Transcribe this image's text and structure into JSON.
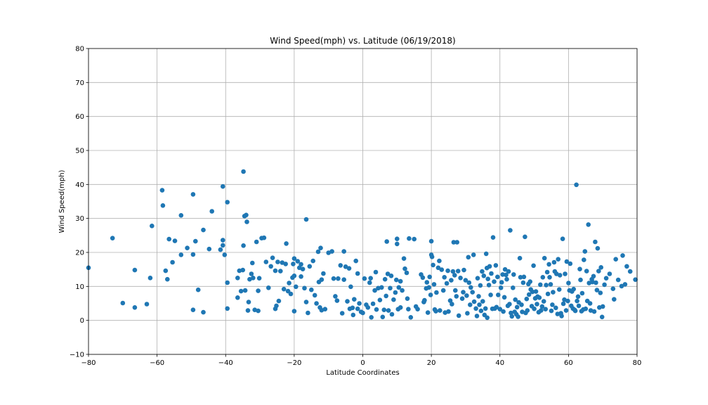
{
  "chart_data": {
    "type": "scatter",
    "title": "Wind Speed(mph) vs. Latitude (06/19/2018)",
    "xlabel": "Latitude Coordinates",
    "ylabel": "Wind Speed(mph)",
    "xlim": [
      -80,
      80
    ],
    "ylim": [
      -10,
      80
    ],
    "xticks": [
      -80,
      -60,
      -40,
      -20,
      0,
      20,
      40,
      60,
      80
    ],
    "yticks": [
      -10,
      0,
      10,
      20,
      30,
      40,
      50,
      60,
      70,
      80
    ],
    "xtick_labels": [
      "−80",
      "−60",
      "−40",
      "−20",
      "0",
      "20",
      "40",
      "60",
      "80"
    ],
    "ytick_labels": [
      "−10",
      "0",
      "10",
      "20",
      "30",
      "40",
      "50",
      "60",
      "70",
      "80"
    ],
    "grid": true,
    "marker_color": "#1f77b4",
    "points": [
      [
        -80,
        15.5
      ],
      [
        -73,
        24.2
      ],
      [
        -70,
        5.1
      ],
      [
        -66.5,
        14.8
      ],
      [
        -66.5,
        3.8
      ],
      [
        -63,
        4.8
      ],
      [
        -62,
        12.5
      ],
      [
        -61.5,
        27.8
      ],
      [
        -58.5,
        38.3
      ],
      [
        -58.3,
        33.8
      ],
      [
        -57.5,
        14.6
      ],
      [
        -57,
        12.1
      ],
      [
        -56.5,
        23.9
      ],
      [
        -55.5,
        17.1
      ],
      [
        -54.8,
        23.4
      ],
      [
        -53,
        19.3
      ],
      [
        -53,
        30.9
      ],
      [
        -51.2,
        21.3
      ],
      [
        -49.5,
        37.1
      ],
      [
        -49.5,
        19.4
      ],
      [
        -49.5,
        3.1
      ],
      [
        -48.8,
        23.3
      ],
      [
        -48,
        9
      ],
      [
        -46.5,
        26.6
      ],
      [
        -46.5,
        2.4
      ],
      [
        -44.8,
        21
      ],
      [
        -44,
        32.1
      ],
      [
        -41.5,
        20.8
      ],
      [
        -40.8,
        39.4
      ],
      [
        -40.8,
        23.6
      ],
      [
        -40.8,
        22.1
      ],
      [
        -40.3,
        19.3
      ],
      [
        -39.5,
        34.8
      ],
      [
        -39.5,
        11.1
      ],
      [
        -39.5,
        3.5
      ],
      [
        -36.5,
        12.5
      ],
      [
        -36.5,
        6.7
      ],
      [
        -36,
        14.6
      ],
      [
        -35.5,
        8.6
      ],
      [
        -35,
        14.8
      ],
      [
        -34.8,
        43.8
      ],
      [
        -34.8,
        22
      ],
      [
        -34.5,
        30.7
      ],
      [
        -34.3,
        8.8
      ],
      [
        -34,
        31
      ],
      [
        -33.8,
        29
      ],
      [
        -33.5,
        2.9
      ],
      [
        -33.3,
        5.4
      ],
      [
        -33,
        12.1
      ],
      [
        -32.5,
        13.7
      ],
      [
        -32.2,
        16.9
      ],
      [
        -32,
        12.5
      ],
      [
        -31.5,
        3.1
      ],
      [
        -31,
        23.1
      ],
      [
        -30.5,
        8.7
      ],
      [
        -30.2,
        12.4
      ],
      [
        -30.5,
        2.8
      ],
      [
        -29.5,
        24.2
      ],
      [
        -28.8,
        24.3
      ],
      [
        -28.2,
        17.2
      ],
      [
        -27.5,
        9.6
      ],
      [
        -26.8,
        15.9
      ],
      [
        -26.3,
        18.4
      ],
      [
        -25.5,
        14.6
      ],
      [
        -25.5,
        3.4
      ],
      [
        -25.2,
        4.3
      ],
      [
        -24.5,
        5.7
      ],
      [
        -24.8,
        17.2
      ],
      [
        -24,
        14.5
      ],
      [
        -23.5,
        17
      ],
      [
        -23,
        9.2
      ],
      [
        -22.5,
        16.6
      ],
      [
        -22.3,
        22.6
      ],
      [
        -21.8,
        8.6
      ],
      [
        -21.5,
        11
      ],
      [
        -21,
        7.8
      ],
      [
        -20.5,
        12.6
      ],
      [
        -20.3,
        16.6
      ],
      [
        -20,
        18.2
      ],
      [
        -20,
        13.1
      ],
      [
        -20,
        2.7
      ],
      [
        -19.5,
        9.9
      ],
      [
        -19,
        17.4
      ],
      [
        -18.5,
        15.5
      ],
      [
        -18,
        16.5
      ],
      [
        -18,
        12.9
      ],
      [
        -17.5,
        15.1
      ],
      [
        -17,
        9.5
      ],
      [
        -16.5,
        29.7
      ],
      [
        -16.5,
        5.4
      ],
      [
        -16,
        2.2
      ],
      [
        -15.5,
        15.9
      ],
      [
        -15,
        9
      ],
      [
        -14.5,
        17.5
      ],
      [
        -14,
        7.4
      ],
      [
        -13.5,
        5
      ],
      [
        -13,
        20.2
      ],
      [
        -12.8,
        11.3
      ],
      [
        -12.5,
        3.8
      ],
      [
        -12.3,
        21.3
      ],
      [
        -12,
        12
      ],
      [
        -12,
        3
      ],
      [
        -11.5,
        13.8
      ],
      [
        -11,
        3.3
      ],
      [
        -10,
        19.9
      ],
      [
        -9,
        20.3
      ],
      [
        -8.5,
        12.3
      ],
      [
        -8,
        7.1
      ],
      [
        -7.5,
        5.8
      ],
      [
        -7.2,
        12.3
      ],
      [
        -6.5,
        16.2
      ],
      [
        -6,
        2.1
      ],
      [
        -5.5,
        20.3
      ],
      [
        -5.5,
        12
      ],
      [
        -5,
        15.8
      ],
      [
        -4.5,
        5.6
      ],
      [
        -4,
        15.3
      ],
      [
        -3.8,
        3.4
      ],
      [
        -3.5,
        9.9
      ],
      [
        -3,
        3.7
      ],
      [
        -2.8,
        1.6
      ],
      [
        -2.5,
        6.2
      ],
      [
        -2,
        17.5
      ],
      [
        -1.5,
        13.8
      ],
      [
        -1.5,
        3.4
      ],
      [
        -1,
        5
      ],
      [
        -0.5,
        2.5
      ],
      [
        0,
        2.2
      ],
      [
        0.5,
        12.3
      ],
      [
        1,
        4.6
      ],
      [
        1.5,
        3.8
      ],
      [
        2,
        11.1
      ],
      [
        2.3,
        12.4
      ],
      [
        2.5,
        0.9
      ],
      [
        3,
        4.9
      ],
      [
        3.5,
        8.8
      ],
      [
        3.8,
        14.2
      ],
      [
        4,
        3.2
      ],
      [
        4.5,
        9.5
      ],
      [
        5,
        6
      ],
      [
        5.5,
        9.7
      ],
      [
        5.8,
        1
      ],
      [
        6.2,
        3.1
      ],
      [
        6.5,
        12.1
      ],
      [
        6.8,
        7.2
      ],
      [
        7,
        23.2
      ],
      [
        7.3,
        13.7
      ],
      [
        7.5,
        2.9
      ],
      [
        8,
        9.5
      ],
      [
        8.3,
        13.1
      ],
      [
        8.5,
        1.8
      ],
      [
        9,
        6.1
      ],
      [
        9.5,
        8.2
      ],
      [
        9.8,
        11.9
      ],
      [
        10,
        24
      ],
      [
        10,
        22.5
      ],
      [
        10.3,
        3.3
      ],
      [
        10.5,
        9.7
      ],
      [
        11,
        11.5
      ],
      [
        11,
        3.8
      ],
      [
        11.5,
        8.8
      ],
      [
        12,
        18.2
      ],
      [
        12.3,
        15.2
      ],
      [
        12.8,
        14
      ],
      [
        13,
        6.4
      ],
      [
        13.3,
        3.3
      ],
      [
        13.5,
        24.1
      ],
      [
        14,
        0.9
      ],
      [
        15,
        23.9
      ],
      [
        15.5,
        4.1
      ],
      [
        16,
        3.3
      ],
      [
        17,
        13.5
      ],
      [
        17.5,
        12.6
      ],
      [
        17.8,
        5.4
      ],
      [
        18,
        5.9
      ],
      [
        18.5,
        9.4
      ],
      [
        18.7,
        11.2
      ],
      [
        19,
        2.3
      ],
      [
        19.3,
        9.7
      ],
      [
        19.5,
        12.8
      ],
      [
        19.8,
        7.5
      ],
      [
        20,
        23.3
      ],
      [
        20,
        19.3
      ],
      [
        20.2,
        18.7
      ],
      [
        20.5,
        16.3
      ],
      [
        20.8,
        10.6
      ],
      [
        21,
        3.2
      ],
      [
        21.3,
        2.7
      ],
      [
        21.5,
        8.2
      ],
      [
        22,
        15.5
      ],
      [
        22.3,
        17.5
      ],
      [
        22.5,
        2.9
      ],
      [
        23,
        14.9
      ],
      [
        23.5,
        8.8
      ],
      [
        23.8,
        12.7
      ],
      [
        24,
        2.3
      ],
      [
        24.5,
        10.9
      ],
      [
        24.8,
        14.6
      ],
      [
        25,
        2.6
      ],
      [
        25.5,
        5.8
      ],
      [
        25.8,
        11.8
      ],
      [
        26,
        4.8
      ],
      [
        26.3,
        14.4
      ],
      [
        26.5,
        23
      ],
      [
        26.8,
        13.3
      ],
      [
        27,
        8.8
      ],
      [
        27.3,
        7.1
      ],
      [
        27.5,
        23
      ],
      [
        27.8,
        14.5
      ],
      [
        28,
        1.4
      ],
      [
        28.5,
        12.5
      ],
      [
        29,
        6.4
      ],
      [
        29.3,
        8.3
      ],
      [
        29.5,
        14.8
      ],
      [
        30,
        11.8
      ],
      [
        30.3,
        7.3
      ],
      [
        30.5,
        2.1
      ],
      [
        30.8,
        18.6
      ],
      [
        31,
        11.1
      ],
      [
        31.3,
        4.6
      ],
      [
        31.5,
        9.7
      ],
      [
        32,
        8.3
      ],
      [
        32.3,
        19.3
      ],
      [
        32.5,
        5.5
      ],
      [
        33,
        3.5
      ],
      [
        33.3,
        1.3
      ],
      [
        33.5,
        12.4
      ],
      [
        33.8,
        7.1
      ],
      [
        34,
        4.6
      ],
      [
        34.3,
        10.3
      ],
      [
        34.5,
        2.8
      ],
      [
        34.8,
        14.4
      ],
      [
        35,
        5.6
      ],
      [
        35.3,
        13.1
      ],
      [
        35.5,
        1.6
      ],
      [
        35.8,
        3.5
      ],
      [
        36,
        19.6
      ],
      [
        36.2,
        15.4
      ],
      [
        36.3,
        0.8
      ],
      [
        36.5,
        12.2
      ],
      [
        36.8,
        10.4
      ],
      [
        37,
        15.9
      ],
      [
        37.3,
        7.5
      ],
      [
        37.5,
        13.8
      ],
      [
        37.8,
        3.4
      ],
      [
        38,
        24.4
      ],
      [
        38.3,
        11.4
      ],
      [
        38.5,
        3.5
      ],
      [
        38.8,
        16.2
      ],
      [
        39,
        3.9
      ],
      [
        39.3,
        12.8
      ],
      [
        39.5,
        7.5
      ],
      [
        40,
        3.3
      ],
      [
        40.3,
        9.6
      ],
      [
        40.5,
        11.2
      ],
      [
        40.8,
        13.5
      ],
      [
        41,
        2.6
      ],
      [
        41.3,
        6.8
      ],
      [
        41.5,
        15
      ],
      [
        41.8,
        13.4
      ],
      [
        42,
        12.1
      ],
      [
        42.3,
        4.3
      ],
      [
        42.5,
        14.4
      ],
      [
        42.8,
        4.8
      ],
      [
        43,
        26.5
      ],
      [
        43.2,
        2.2
      ],
      [
        43.5,
        1.2
      ],
      [
        43.8,
        9.6
      ],
      [
        44,
        13.5
      ],
      [
        44.3,
        2.5
      ],
      [
        44.5,
        6.1
      ],
      [
        44.8,
        1.8
      ],
      [
        45,
        3.9
      ],
      [
        45.3,
        1.1
      ],
      [
        45.5,
        5.3
      ],
      [
        45.8,
        18.3
      ],
      [
        46,
        12.7
      ],
      [
        46.3,
        4.6
      ],
      [
        46.5,
        2.5
      ],
      [
        46.8,
        11.1
      ],
      [
        47,
        12.8
      ],
      [
        47.3,
        24.6
      ],
      [
        47.5,
        2.2
      ],
      [
        47.8,
        6.3
      ],
      [
        48,
        2.9
      ],
      [
        48.3,
        10.7
      ],
      [
        48.5,
        7.6
      ],
      [
        48.8,
        11.4
      ],
      [
        49,
        9.1
      ],
      [
        49.3,
        4.2
      ],
      [
        49.5,
        8.4
      ],
      [
        49.8,
        16.1
      ],
      [
        50,
        3.4
      ],
      [
        50.3,
        6.5
      ],
      [
        50.5,
        8.5
      ],
      [
        50.8,
        4.8
      ],
      [
        51,
        7
      ],
      [
        51.3,
        2.4
      ],
      [
        51.5,
        6.7
      ],
      [
        51.8,
        10.5
      ],
      [
        52,
        2.9
      ],
      [
        52.3,
        4.1
      ],
      [
        52.5,
        12.7
      ],
      [
        52.8,
        5.6
      ],
      [
        53,
        18.3
      ],
      [
        53.3,
        3.3
      ],
      [
        53.5,
        10.4
      ],
      [
        53.8,
        14.2
      ],
      [
        54,
        7.8
      ],
      [
        54.3,
        16.5
      ],
      [
        54.5,
        12.7
      ],
      [
        54.8,
        10.6
      ],
      [
        55,
        2.8
      ],
      [
        55.3,
        4.6
      ],
      [
        55.5,
        8.3
      ],
      [
        55.8,
        17.1
      ],
      [
        56,
        14.4
      ],
      [
        56.3,
        3.7
      ],
      [
        56.5,
        13.7
      ],
      [
        56.8,
        1.9
      ],
      [
        57,
        18
      ],
      [
        57.3,
        9.1
      ],
      [
        57.5,
        13.3
      ],
      [
        57.8,
        2.1
      ],
      [
        58,
        1.3
      ],
      [
        58.3,
        24
      ],
      [
        58.5,
        4.9
      ],
      [
        58.8,
        6.1
      ],
      [
        59,
        13.7
      ],
      [
        59.3,
        2.9
      ],
      [
        59.5,
        17.3
      ],
      [
        59.8,
        5.7
      ],
      [
        60,
        11
      ],
      [
        60.3,
        8.8
      ],
      [
        60.5,
        16.7
      ],
      [
        60.8,
        4.3
      ],
      [
        61,
        8.5
      ],
      [
        61.3,
        3.5
      ],
      [
        61.5,
        9.2
      ],
      [
        61.8,
        3.1
      ],
      [
        62,
        2.8
      ],
      [
        62.3,
        39.9
      ],
      [
        62.5,
        5.7
      ],
      [
        62.8,
        7
      ],
      [
        63,
        4.3
      ],
      [
        63.3,
        15.1
      ],
      [
        63.5,
        11.9
      ],
      [
        63.8,
        2.7
      ],
      [
        64,
        8
      ],
      [
        64.3,
        3.2
      ],
      [
        64.5,
        17.8
      ],
      [
        64.8,
        20.3
      ],
      [
        65,
        3.4
      ],
      [
        65.3,
        14.5
      ],
      [
        65.5,
        5.7
      ],
      [
        65.8,
        28.2
      ],
      [
        66,
        11
      ],
      [
        66.3,
        5
      ],
      [
        66.5,
        2.9
      ],
      [
        66.8,
        12.1
      ],
      [
        67,
        11.3
      ],
      [
        67.3,
        13
      ],
      [
        67.5,
        2.6
      ],
      [
        67.8,
        23.1
      ],
      [
        68,
        11.1
      ],
      [
        68.3,
        8.9
      ],
      [
        68.5,
        21.2
      ],
      [
        68.8,
        14.5
      ],
      [
        69,
        3.8
      ],
      [
        69.3,
        8.1
      ],
      [
        69.5,
        15.6
      ],
      [
        69.8,
        1
      ],
      [
        70,
        4.1
      ],
      [
        70.5,
        10.5
      ],
      [
        71,
        12.4
      ],
      [
        72,
        13.7
      ],
      [
        73,
        9.3
      ],
      [
        73.3,
        6.2
      ],
      [
        73.8,
        18
      ],
      [
        74.5,
        11.9
      ],
      [
        75.5,
        10.1
      ],
      [
        75.8,
        19.1
      ],
      [
        76.5,
        10.6
      ],
      [
        77,
        15.9
      ],
      [
        78,
        14.4
      ],
      [
        79.5,
        12
      ]
    ]
  }
}
